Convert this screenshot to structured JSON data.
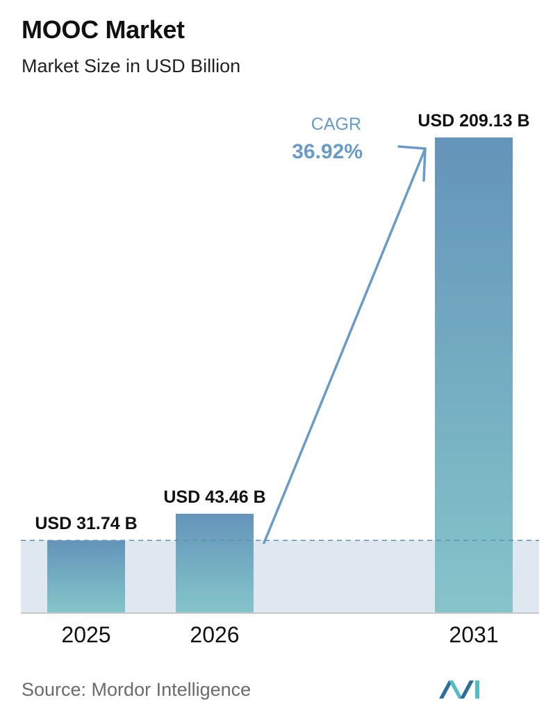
{
  "header": {
    "title": "MOOC Market",
    "subtitle": "Market Size in USD Billion"
  },
  "footer": {
    "source": "Source:  Mordor Intelligence"
  },
  "colors": {
    "bar_top": "#6494ba",
    "bar_bottom": "#84c5c9",
    "band": "#dfe8f1",
    "baseline": "#c8c8c8",
    "dashed_line": "#5b8fb4",
    "arrow": "#6a9bc4",
    "cagr_text": "#6a9bc4",
    "label_text": "#111111",
    "logo_dark": "#2c6d9c",
    "logo_light": "#55bcc4"
  },
  "chart_data": {
    "type": "bar",
    "categories": [
      "2025",
      "2026",
      "2031"
    ],
    "values": [
      31.74,
      43.46,
      209.13
    ],
    "data_labels": [
      "USD 31.74 B",
      "USD 43.46 B",
      "USD 209.13 B"
    ],
    "title": "MOOC Market",
    "subtitle": "Market Size in USD Billion",
    "xlabel": "",
    "ylabel": "",
    "ylim": [
      0,
      209.13
    ],
    "grid": false,
    "legend": "none",
    "reference_line": 31.74,
    "annotation": {
      "label": "CAGR",
      "value": "36.92%",
      "from_category": "2026",
      "to_category": "2031"
    }
  },
  "logo": {
    "icon": "mordor-intelligence-logo-icon"
  }
}
